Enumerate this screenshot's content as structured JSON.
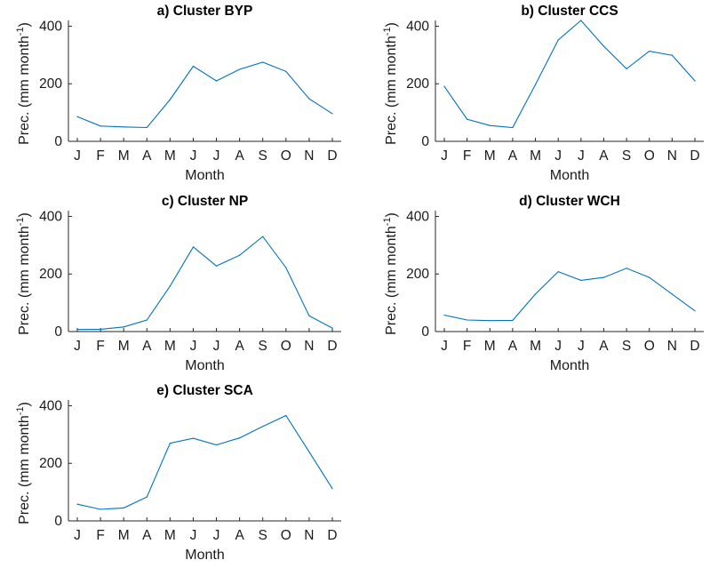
{
  "colors": {
    "line": "#0072bd",
    "axis": "#262626"
  },
  "chart_data": [
    {
      "type": "line",
      "title": "a) Cluster BYP",
      "xlabel": "Month",
      "ylabel": "Prec. (mm month",
      "ylabel_sup": "-1",
      "ylabel_close": ")",
      "categories": [
        "J",
        "F",
        "M",
        "A",
        "M",
        "J",
        "J",
        "A",
        "S",
        "O",
        "N",
        "D"
      ],
      "yticks": [
        "0",
        "200",
        "400"
      ],
      "ylim": [
        0,
        420
      ],
      "series": [
        {
          "values": [
            86,
            53,
            50,
            48,
            145,
            261,
            210,
            250,
            275,
            243,
            148,
            96
          ]
        }
      ]
    },
    {
      "type": "line",
      "title": "b) Cluster CCS",
      "xlabel": "Month",
      "ylabel": "Prec. (mm month",
      "ylabel_sup": "-1",
      "ylabel_close": ")",
      "categories": [
        "J",
        "F",
        "M",
        "A",
        "M",
        "J",
        "J",
        "A",
        "S",
        "O",
        "N",
        "D"
      ],
      "yticks": [
        "0",
        "200",
        "400"
      ],
      "ylim": [
        0,
        420
      ],
      "series": [
        {
          "values": [
            191,
            77,
            55,
            48,
            197,
            352,
            420,
            330,
            252,
            313,
            299,
            210
          ]
        }
      ]
    },
    {
      "type": "line",
      "title": "c) Cluster NP",
      "xlabel": "Month",
      "ylabel": "Prec. (mm month",
      "ylabel_sup": "-1",
      "ylabel_close": ")",
      "categories": [
        "J",
        "F",
        "M",
        "A",
        "M",
        "J",
        "J",
        "A",
        "S",
        "O",
        "N",
        "D"
      ],
      "yticks": [
        "0",
        "200",
        "400"
      ],
      "ylim": [
        0,
        420
      ],
      "series": [
        {
          "values": [
            7,
            8,
            16,
            40,
            158,
            294,
            228,
            265,
            330,
            222,
            55,
            12
          ]
        }
      ]
    },
    {
      "type": "line",
      "title": "d) Cluster WCH",
      "xlabel": "Month",
      "ylabel": "Prec. (mm month",
      "ylabel_sup": "-1",
      "ylabel_close": ")",
      "categories": [
        "J",
        "F",
        "M",
        "A",
        "M",
        "J",
        "J",
        "A",
        "S",
        "O",
        "N",
        "D"
      ],
      "yticks": [
        "0",
        "200",
        "400"
      ],
      "ylim": [
        0,
        420
      ],
      "series": [
        {
          "values": [
            57,
            40,
            38,
            39,
            130,
            208,
            178,
            188,
            220,
            188,
            130,
            72
          ]
        }
      ]
    },
    {
      "type": "line",
      "title": "e) Cluster SCA",
      "xlabel": "Month",
      "ylabel": "Prec. (mm month",
      "ylabel_sup": "-1",
      "ylabel_close": ")",
      "categories": [
        "J",
        "F",
        "M",
        "A",
        "M",
        "J",
        "J",
        "A",
        "S",
        "O",
        "N",
        "D"
      ],
      "yticks": [
        "0",
        "200",
        "400"
      ],
      "ylim": [
        0,
        420
      ],
      "series": [
        {
          "values": [
            58,
            40,
            45,
            83,
            270,
            287,
            264,
            288,
            328,
            366,
            240,
            112
          ]
        }
      ]
    }
  ]
}
